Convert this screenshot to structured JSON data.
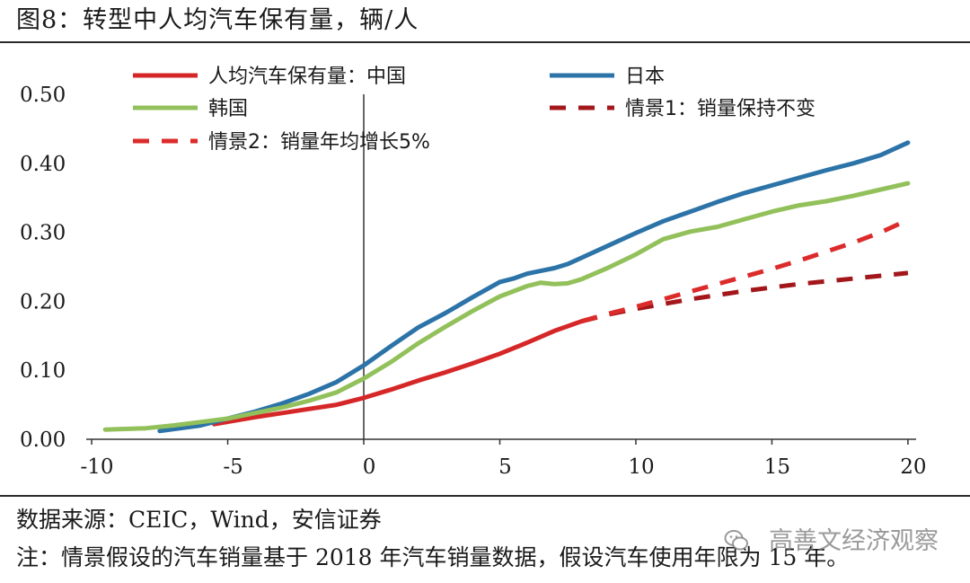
{
  "figure": {
    "title": "图8：转型中人均汽车保有量，辆/人",
    "source": "数据来源：CEIC，Wind，安信证券",
    "note": "注：情景假设的汽车销量基于 2018 年汽车销量数据，假设汽车使用年限为 15 年。",
    "watermark": "高善文经济观察",
    "watermark_icon": "wechat-icon"
  },
  "chart_data": {
    "type": "line",
    "title": "转型中人均汽车保有量，辆/人",
    "xlabel": "",
    "ylabel": "",
    "xlim": [
      -10.2,
      20.3
    ],
    "ylim": [
      0,
      0.5
    ],
    "x_ticks": [
      -10,
      -5,
      0,
      5,
      10,
      15,
      20
    ],
    "x_tick_labels": [
      "-10",
      "-5",
      "0",
      "5",
      "10",
      "15",
      "20"
    ],
    "y_ticks": [
      0,
      0.1,
      0.2,
      0.3,
      0.4,
      0.5
    ],
    "y_tick_labels": [
      "0.00",
      "0.10",
      "0.20",
      "0.30",
      "0.40",
      "0.50"
    ],
    "grid": false,
    "legend_position": "top",
    "series": [
      {
        "name": "人均汽车保有量：中国",
        "color": "#d62728",
        "style": "solid",
        "x": [
          -5.5,
          -4,
          -3,
          -2,
          -1,
          0,
          1,
          2,
          3,
          4,
          5,
          6,
          7,
          8
        ],
        "y": [
          0.022,
          0.032,
          0.038,
          0.044,
          0.05,
          0.06,
          0.072,
          0.085,
          0.097,
          0.11,
          0.124,
          0.14,
          0.157,
          0.171
        ]
      },
      {
        "name": "日本",
        "color": "#2c73a8",
        "style": "solid",
        "x": [
          -7.5,
          -6,
          -5,
          -4,
          -3,
          -2,
          -1,
          0,
          1,
          2,
          3,
          4,
          5,
          5.5,
          6,
          6.5,
          7,
          7.5,
          8,
          9,
          10,
          11,
          12,
          13,
          14,
          15,
          16,
          17,
          18,
          19,
          20
        ],
        "y": [
          0.012,
          0.02,
          0.03,
          0.04,
          0.052,
          0.066,
          0.083,
          0.107,
          0.135,
          0.162,
          0.183,
          0.206,
          0.228,
          0.233,
          0.24,
          0.244,
          0.248,
          0.254,
          0.263,
          0.281,
          0.299,
          0.316,
          0.33,
          0.344,
          0.357,
          0.368,
          0.379,
          0.39,
          0.4,
          0.412,
          0.43
        ]
      },
      {
        "name": "韩国",
        "color": "#92c05a",
        "style": "solid",
        "x": [
          -9.5,
          -8,
          -7,
          -6,
          -5,
          -4,
          -3,
          -2,
          -1,
          0,
          1,
          2,
          3,
          4,
          5,
          6,
          6.5,
          7,
          7.5,
          8,
          9,
          10,
          11,
          12,
          13,
          14,
          15,
          16,
          17,
          18,
          19,
          20
        ],
        "y": [
          0.014,
          0.016,
          0.02,
          0.025,
          0.03,
          0.038,
          0.046,
          0.056,
          0.068,
          0.088,
          0.112,
          0.139,
          0.163,
          0.186,
          0.207,
          0.222,
          0.227,
          0.225,
          0.226,
          0.232,
          0.249,
          0.268,
          0.29,
          0.301,
          0.308,
          0.319,
          0.33,
          0.339,
          0.345,
          0.353,
          0.362,
          0.371
        ]
      },
      {
        "name": "情景1：销量保持不变",
        "color": "#a3161a",
        "style": "dashed",
        "x": [
          8,
          9,
          10,
          11,
          12,
          13,
          14,
          15,
          16,
          17,
          18,
          19,
          20
        ],
        "y": [
          0.171,
          0.181,
          0.189,
          0.196,
          0.203,
          0.209,
          0.215,
          0.22,
          0.225,
          0.229,
          0.233,
          0.237,
          0.241
        ]
      },
      {
        "name": "情景2：销量年均增长5%",
        "color": "#dc2b2b",
        "style": "dashed",
        "x": [
          8,
          9,
          10,
          11,
          12,
          13,
          14,
          15,
          16,
          17,
          18,
          19,
          20
        ],
        "y": [
          0.171,
          0.182,
          0.192,
          0.203,
          0.214,
          0.225,
          0.236,
          0.247,
          0.259,
          0.272,
          0.285,
          0.3,
          0.318
        ]
      }
    ]
  }
}
